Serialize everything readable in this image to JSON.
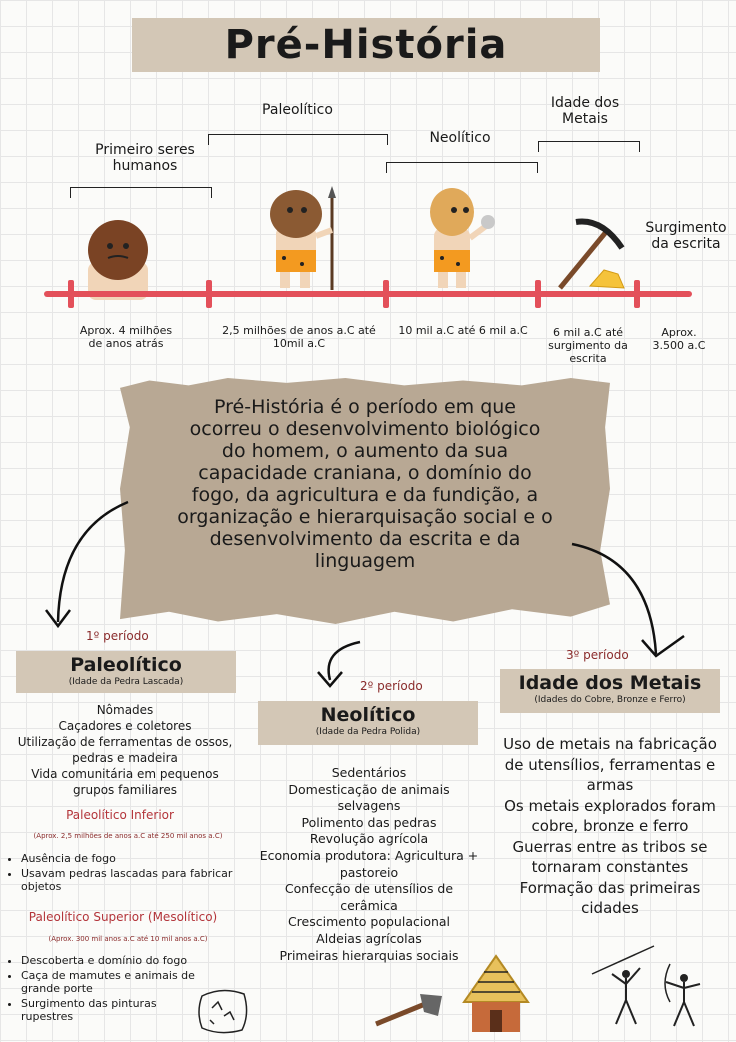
{
  "title": "Pré-História",
  "timeline": {
    "brackets": {
      "primeiros": "Primeiro seres humanos",
      "paleolitico": "Paleolítico",
      "neolitico": "Neolítico",
      "metais": "Idade dos Metais"
    },
    "escrita": "Surgimento da escrita",
    "dates": [
      "Aprox. 4 milhões de anos atrás",
      "2,5 milhões de anos a.C até 10mil a.C",
      "10 mil a.C até 6 mil a.C",
      "6 mil a.C até surgimento da escrita",
      "Aprox. 3.500 a.C"
    ]
  },
  "definition": "Pré-História é o período em que ocorreu o desenvolvimento biológico do homem, o aumento da sua capacidade craniana, o domínio do fogo, da agricultura e da fundição, a organização e hierarquisação social e o desenvolvimento da escrita e da linguagem",
  "paleolitico": {
    "period_label": "1º período",
    "title": "Paleolítico",
    "subtitle": "(Idade da Pedra Lascada)",
    "items": [
      "Nômades",
      "Caçadores e coletores",
      "Utilização de ferramentas de ossos, pedras e madeira",
      "Vida comunitária em pequenos grupos familiares"
    ],
    "inferior": {
      "title": "Paleolítico Inferior",
      "date": "(Aprox. 2,5 milhões de anos a.C até 250 mil anos a.C)",
      "items": [
        "Ausência de fogo",
        "Usavam pedras lascadas para fabricar objetos"
      ]
    },
    "superior": {
      "title": "Paleolítico Superior (Mesolítico)",
      "date": "(Aprox. 300 mil anos a.C até 10 mil anos a.C)",
      "items": [
        "Descoberta e domínio do fogo",
        "Caça de mamutes e animais de grande porte",
        "Surgimento das pinturas rupestres"
      ]
    }
  },
  "neolitico": {
    "period_label": "2º período",
    "title": "Neolítico",
    "subtitle": "(Idade da Pedra Polida)",
    "items": [
      "Sedentários",
      "Domesticação de animais selvagens",
      "Polimento das pedras",
      "Revolução agrícola",
      "Economia produtora: Agricultura + pastoreio",
      "Confecção de utensílios de cerâmica",
      "Crescimento populacional",
      "Aldeias agrícolas",
      "Primeiras hierarquias sociais"
    ]
  },
  "metais": {
    "period_label": "3º período",
    "title": "Idade dos Metais",
    "subtitle": "(Idades do Cobre, Bronze e Ferro)",
    "items": [
      "Uso de metais na fabricação de utensílios, ferramentas e armas",
      "Os metais explorados foram cobre, bronze e ferro",
      "Guerras entre as tribos se tornaram constantes",
      "Formação das primeiras cidades"
    ]
  },
  "colors": {
    "accent_red": "#e3505a",
    "box_beige": "#d3c7b6",
    "paper": "#b8a894",
    "label_red": "#8a2b2b"
  },
  "icons": [
    "caveman-hair-icon",
    "caveman-spear-icon",
    "caveman-blond-icon",
    "pickaxe-gold-icon",
    "stone-axe-icon",
    "straw-hut-icon",
    "cave-painting-icon",
    "stick-hunters-icon"
  ]
}
